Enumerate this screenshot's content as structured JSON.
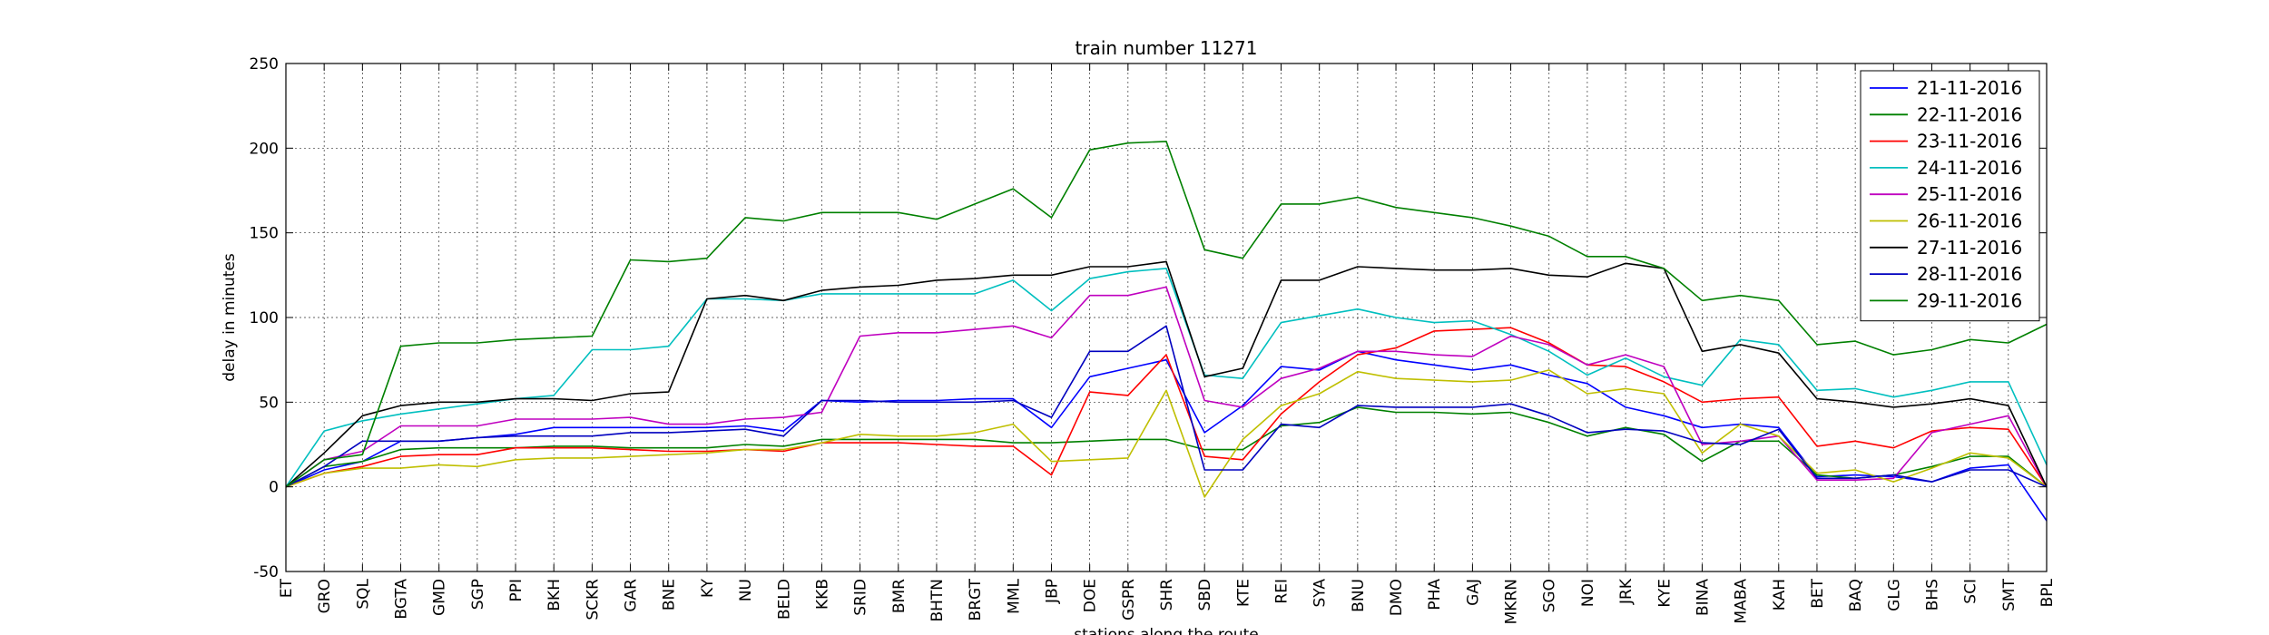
{
  "chart_data": {
    "type": "line",
    "title": "train number 11271",
    "xlabel": "stations along the route",
    "ylabel": "delay in minutes",
    "ylim": [
      -50,
      250
    ],
    "yticks": [
      -50,
      0,
      50,
      100,
      150,
      200,
      250
    ],
    "grid": true,
    "legend_position": "top-right",
    "categories": [
      "ET",
      "GRO",
      "SQL",
      "BGTA",
      "GMD",
      "SGP",
      "PPI",
      "BKH",
      "SCKR",
      "GAR",
      "BNE",
      "KY",
      "NU",
      "BELD",
      "KKB",
      "SRID",
      "BMR",
      "BHTN",
      "BRGT",
      "MML",
      "JBP",
      "DOE",
      "GSPR",
      "SHR",
      "SBD",
      "KTE",
      "REI",
      "SYA",
      "BNU",
      "DMO",
      "PHA",
      "GAJ",
      "MKRN",
      "SGO",
      "NOI",
      "JRK",
      "KYE",
      "BINA",
      "MABA",
      "KAH",
      "BET",
      "BAQ",
      "GLG",
      "BHS",
      "SCI",
      "SMT",
      "BPL"
    ],
    "series": [
      {
        "name": "21-11-2016",
        "color": "#0000ff",
        "values": [
          0,
          10,
          15,
          27,
          27,
          29,
          31,
          35,
          35,
          35,
          35,
          35,
          36,
          33,
          51,
          50,
          51,
          51,
          52,
          52,
          35,
          65,
          70,
          75,
          32,
          48,
          71,
          69,
          80,
          75,
          72,
          69,
          72,
          66,
          61,
          47,
          42,
          35,
          37,
          35,
          6,
          7,
          6,
          3,
          11,
          13,
          -20
        ]
      },
      {
        "name": "22-11-2016",
        "color": "#008000",
        "values": [
          0,
          12,
          15,
          22,
          23,
          23,
          23,
          24,
          24,
          23,
          23,
          23,
          25,
          24,
          28,
          28,
          28,
          28,
          28,
          26,
          26,
          27,
          28,
          28,
          22,
          22,
          36,
          38,
          47,
          44,
          44,
          43,
          44,
          38,
          30,
          35,
          31,
          15,
          27,
          27,
          7,
          5,
          7,
          12,
          18,
          18,
          0
        ]
      },
      {
        "name": "23-11-2016",
        "color": "#ff0000",
        "values": [
          0,
          8,
          12,
          18,
          19,
          19,
          23,
          23,
          23,
          22,
          21,
          21,
          22,
          21,
          26,
          26,
          26,
          25,
          24,
          24,
          7,
          56,
          54,
          78,
          18,
          16,
          43,
          62,
          78,
          82,
          92,
          93,
          94,
          85,
          72,
          71,
          62,
          50,
          52,
          53,
          24,
          27,
          23,
          33,
          35,
          34,
          0
        ]
      },
      {
        "name": "24-11-2016",
        "color": "#00bfbf",
        "values": [
          0,
          33,
          39,
          43,
          46,
          49,
          52,
          54,
          81,
          81,
          83,
          111,
          111,
          110,
          114,
          114,
          114,
          114,
          114,
          122,
          104,
          123,
          127,
          129,
          66,
          64,
          97,
          101,
          105,
          100,
          97,
          98,
          90,
          80,
          66,
          76,
          65,
          60,
          87,
          84,
          57,
          58,
          53,
          57,
          62,
          62,
          13
        ]
      },
      {
        "name": "25-11-2016",
        "color": "#bf00bf",
        "values": [
          0,
          16,
          21,
          36,
          36,
          36,
          40,
          40,
          40,
          41,
          37,
          37,
          40,
          41,
          44,
          89,
          91,
          91,
          93,
          95,
          88,
          113,
          113,
          118,
          51,
          47,
          64,
          70,
          80,
          80,
          78,
          77,
          89,
          84,
          72,
          78,
          71,
          25,
          27,
          30,
          4,
          4,
          5,
          32,
          37,
          42,
          0
        ]
      },
      {
        "name": "26-11-2016",
        "color": "#bfbf00",
        "values": [
          0,
          8,
          11,
          11,
          13,
          12,
          16,
          17,
          17,
          18,
          19,
          20,
          22,
          22,
          26,
          31,
          30,
          30,
          32,
          37,
          15,
          16,
          17,
          57,
          -6,
          28,
          48,
          55,
          68,
          64,
          63,
          62,
          63,
          69,
          55,
          58,
          55,
          20,
          37,
          30,
          8,
          10,
          3,
          11,
          20,
          17,
          0
        ]
      },
      {
        "name": "27-11-2016",
        "color": "#000000",
        "values": [
          0,
          20,
          42,
          48,
          50,
          50,
          52,
          52,
          51,
          55,
          56,
          111,
          113,
          110,
          116,
          118,
          119,
          122,
          123,
          125,
          125,
          130,
          130,
          133,
          65,
          70,
          122,
          122,
          130,
          129,
          128,
          128,
          129,
          125,
          124,
          132,
          129,
          80,
          84,
          79,
          52,
          50,
          47,
          49,
          52,
          48,
          0
        ]
      },
      {
        "name": "28-11-2016",
        "color": "#0000bf",
        "values": [
          0,
          12,
          27,
          27,
          27,
          29,
          30,
          30,
          30,
          32,
          32,
          33,
          34,
          30,
          51,
          51,
          50,
          50,
          50,
          51,
          41,
          80,
          80,
          95,
          10,
          10,
          37,
          35,
          48,
          47,
          47,
          47,
          49,
          42,
          32,
          34,
          33,
          26,
          25,
          34,
          5,
          5,
          7,
          3,
          10,
          10,
          0
        ]
      },
      {
        "name": "29-11-2016",
        "color": "#008000",
        "values": [
          0,
          16,
          19,
          83,
          85,
          85,
          87,
          88,
          89,
          134,
          133,
          135,
          159,
          157,
          162,
          162,
          162,
          158,
          167,
          176,
          159,
          199,
          203,
          204,
          140,
          135,
          167,
          167,
          171,
          165,
          162,
          159,
          154,
          148,
          136,
          136,
          129,
          110,
          113,
          110,
          84,
          86,
          78,
          81,
          87,
          85,
          96
        ]
      }
    ]
  }
}
